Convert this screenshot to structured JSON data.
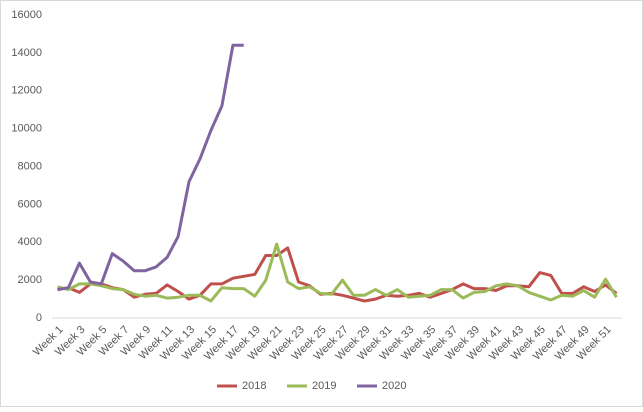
{
  "chart_data": {
    "type": "line",
    "categories": [
      "Week 1",
      null,
      "Week 3",
      null,
      "Week 5",
      null,
      "Week 7",
      null,
      "Week 9",
      null,
      "Week 11",
      null,
      "Week 13",
      null,
      "Week 15",
      null,
      "Week 17",
      null,
      "Week 19",
      null,
      "Week 21",
      null,
      "Week 23",
      null,
      "Week 25",
      null,
      "Week 27",
      null,
      "Week 29",
      null,
      "Week 31",
      null,
      "Week 33",
      null,
      "Week 35",
      null,
      "Week 37",
      null,
      "Week 39",
      null,
      "Week 41",
      null,
      "Week 43",
      null,
      "Week 45",
      null,
      "Week 47",
      null,
      "Week 49",
      null,
      "Week 51",
      null
    ],
    "series": [
      {
        "name": "2018",
        "color": "#c0504d",
        "values": [
          1500,
          1600,
          1350,
          1800,
          1800,
          1600,
          1500,
          1100,
          1250,
          1300,
          1750,
          1400,
          1000,
          1200,
          1800,
          1800,
          2100,
          2200,
          2300,
          3300,
          3300,
          3700,
          1900,
          1700,
          1250,
          1300,
          1200,
          1050,
          900,
          1000,
          1200,
          1150,
          1200,
          1300,
          1100,
          1300,
          1500,
          1800,
          1550,
          1550,
          1450,
          1700,
          1700,
          1650,
          2400,
          2250,
          1300,
          1300,
          1650,
          1400,
          1750,
          1300
        ]
      },
      {
        "name": "2019",
        "color": "#9bbb59",
        "values": [
          1650,
          1500,
          1800,
          1800,
          1700,
          1550,
          1500,
          1250,
          1150,
          1200,
          1050,
          1100,
          1200,
          1200,
          900,
          1600,
          1550,
          1550,
          1150,
          2000,
          3900,
          1900,
          1550,
          1650,
          1300,
          1250,
          2000,
          1200,
          1200,
          1500,
          1200,
          1500,
          1100,
          1150,
          1200,
          1500,
          1500,
          1050,
          1350,
          1400,
          1700,
          1800,
          1700,
          1350,
          1150,
          950,
          1200,
          1150,
          1450,
          1100,
          2050,
          1100
        ]
      },
      {
        "name": "2020",
        "color": "#8064a2",
        "values": [
          1500,
          1600,
          2900,
          1900,
          1800,
          3400,
          3000,
          2500,
          2500,
          2700,
          3200,
          4300,
          7200,
          8400,
          9900,
          11200,
          14400,
          14400,
          null,
          null,
          null,
          null,
          null,
          null,
          null,
          null,
          null,
          null,
          null,
          null,
          null,
          null,
          null,
          null,
          null,
          null,
          null,
          null,
          null,
          null,
          null,
          null,
          null,
          null,
          null,
          null,
          null,
          null,
          null,
          null,
          null,
          null
        ]
      }
    ],
    "ylim": [
      0,
      16000
    ],
    "yticks": [
      0,
      2000,
      4000,
      6000,
      8000,
      10000,
      12000,
      14000,
      16000
    ],
    "grid": false,
    "legend": "bottom"
  }
}
